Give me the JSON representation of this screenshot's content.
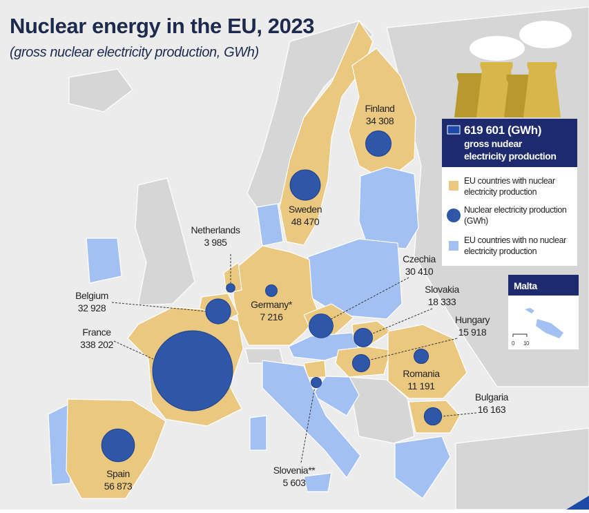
{
  "header": {
    "title": "Nuclear energy in the EU, 2023",
    "subtitle": "(gross nuclear electricity production, GWh)"
  },
  "summary": {
    "total": "619 601 (GWh)",
    "description": [
      "gross nudear",
      "electricity production"
    ]
  },
  "legend": [
    {
      "label": [
        "EU countries with nuclear",
        "electricity production"
      ]
    },
    {
      "label": [
        "Nuclear electricity production",
        "(GWh)"
      ]
    },
    {
      "label": [
        "EU countries with no nuclear",
        "electricity production"
      ]
    }
  ],
  "inset": {
    "title": "Malta",
    "scale": [
      "0",
      "10"
    ]
  },
  "countries": [
    {
      "name": "Finland",
      "value": 34308,
      "value_label": "34 308"
    },
    {
      "name": "Sweden",
      "value": 48470,
      "value_label": "48 470"
    },
    {
      "name": "Netherlands",
      "value": 3985,
      "value_label": "3 985"
    },
    {
      "name": "Belgium",
      "value": 32928,
      "value_label": "32 928"
    },
    {
      "name": "France",
      "value": 338202,
      "value_label": "338 202"
    },
    {
      "name": "Germany*",
      "value": 7216,
      "value_label": "7 216"
    },
    {
      "name": "Czechia",
      "value": 30410,
      "value_label": "30 410"
    },
    {
      "name": "Slovakia",
      "value": 18333,
      "value_label": "18 333"
    },
    {
      "name": "Hungary",
      "value": 15918,
      "value_label": "15 918"
    },
    {
      "name": "Romania",
      "value": 11191,
      "value_label": "11 191"
    },
    {
      "name": "Bulgaria",
      "value": 16163,
      "value_label": "16 163"
    },
    {
      "name": "Spain",
      "value": 56873,
      "value_label": "56 873"
    },
    {
      "name": "Slovenia**",
      "value": 5603,
      "value_label": "5 603"
    }
  ]
}
